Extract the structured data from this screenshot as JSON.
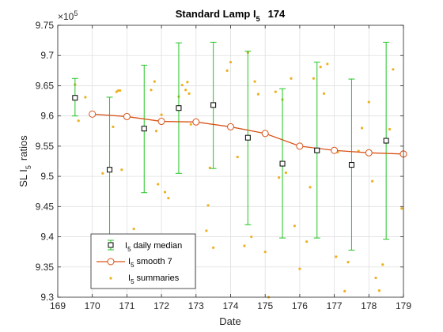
{
  "chart_data": {
    "type": "line",
    "title_main": "Standard Lamp I",
    "title_sub": "5",
    "title_tail": "174",
    "xlabel": "Date",
    "ylabel_main": "SL I",
    "ylabel_sub": "5",
    "ylabel_tail": "ratios",
    "y_exponent_label": "×10",
    "y_exponent_power": "5",
    "xlim": [
      169,
      179
    ],
    "ylim": [
      9.3,
      9.75
    ],
    "xticks": [
      "169",
      "170",
      "171",
      "172",
      "173",
      "174",
      "175",
      "176",
      "177",
      "178",
      "179"
    ],
    "yticks": [
      "9.3",
      "9.35",
      "9.4",
      "9.45",
      "9.5",
      "9.55",
      "9.6",
      "9.65",
      "9.7",
      "9.75"
    ],
    "grid": true,
    "legend_position": "bottom-left",
    "colors": {
      "median": "#000000",
      "errorbar": "#22c522",
      "smooth": "#d95319",
      "summaries": "#edb120",
      "grid": "#dfdfdf",
      "axis": "#262626"
    },
    "series": [
      {
        "name": "I5 daily median",
        "legend_main": "I",
        "legend_sub": "5",
        "legend_tail": "daily median",
        "marker": "square",
        "points": [
          {
            "x": 169.5,
            "y": 9.63,
            "ylow": 9.6,
            "yhigh": 9.662
          },
          {
            "x": 170.5,
            "y": 9.511,
            "ylow": 9.39,
            "yhigh": 9.631
          },
          {
            "x": 171.5,
            "y": 9.579,
            "ylow": 9.473,
            "yhigh": 9.684
          },
          {
            "x": 172.5,
            "y": 9.613,
            "ylow": 9.505,
            "yhigh": 9.721
          },
          {
            "x": 173.5,
            "y": 9.618,
            "ylow": 9.513,
            "yhigh": 9.722
          },
          {
            "x": 174.5,
            "y": 9.564,
            "ylow": 9.42,
            "yhigh": 9.707
          },
          {
            "x": 175.5,
            "y": 9.521,
            "ylow": 9.398,
            "yhigh": 9.645
          },
          {
            "x": 176.5,
            "y": 9.543,
            "ylow": 9.398,
            "yhigh": 9.689
          },
          {
            "x": 177.5,
            "y": 9.519,
            "ylow": 9.378,
            "yhigh": 9.661
          },
          {
            "x": 178.5,
            "y": 9.559,
            "ylow": 9.396,
            "yhigh": 9.722
          }
        ]
      },
      {
        "name": "I5 smooth 7",
        "legend_main": "I",
        "legend_sub": "5",
        "legend_tail": "smooth 7",
        "marker": "circle",
        "x": [
          170,
          171,
          172,
          173,
          174,
          175,
          176,
          177,
          178,
          179
        ],
        "y": [
          9.603,
          9.599,
          9.591,
          9.59,
          9.582,
          9.571,
          9.55,
          9.543,
          9.539,
          9.537
        ]
      },
      {
        "name": "I5 summaries",
        "legend_main": "I",
        "legend_sub": "5",
        "legend_tail": "summaries",
        "marker": "dot",
        "x": [
          169.5,
          169.6,
          169.8,
          170.3,
          170.6,
          170.7,
          170.75,
          170.8,
          170.85,
          171.2,
          171.5,
          171.7,
          171.8,
          171.85,
          171.9,
          172.0,
          172.1,
          172.2,
          172.5,
          172.6,
          172.7,
          172.75,
          172.8,
          172.85,
          173.3,
          173.35,
          173.4,
          173.5,
          173.9,
          174.0,
          174.2,
          174.4,
          174.5,
          174.6,
          174.7,
          174.8,
          175.0,
          175.1,
          175.3,
          175.4,
          175.5,
          175.6,
          175.75,
          175.85,
          176.0,
          176.2,
          176.3,
          176.4,
          176.6,
          176.7,
          176.8,
          177.05,
          177.1,
          177.3,
          177.4,
          177.7,
          177.8,
          178.0,
          178.1,
          178.2,
          178.3,
          178.4,
          178.6,
          178.7,
          178.95
        ],
        "y": [
          9.652,
          9.592,
          9.631,
          9.505,
          9.582,
          9.64,
          9.642,
          9.642,
          9.511,
          9.413,
          9.578,
          9.643,
          9.657,
          9.575,
          9.487,
          9.602,
          9.474,
          9.464,
          9.632,
          9.651,
          9.643,
          9.656,
          9.637,
          9.586,
          9.41,
          9.452,
          9.514,
          9.382,
          9.675,
          9.689,
          9.532,
          9.385,
          9.705,
          9.4,
          9.657,
          9.636,
          9.375,
          9.3,
          9.64,
          9.498,
          9.627,
          9.506,
          9.662,
          9.418,
          9.347,
          9.392,
          9.482,
          9.662,
          9.681,
          9.637,
          9.686,
          9.367,
          9.54,
          9.31,
          9.358,
          9.542,
          9.58,
          9.623,
          9.492,
          9.332,
          9.311,
          9.354,
          9.578,
          9.677,
          9.447
        ]
      }
    ]
  }
}
